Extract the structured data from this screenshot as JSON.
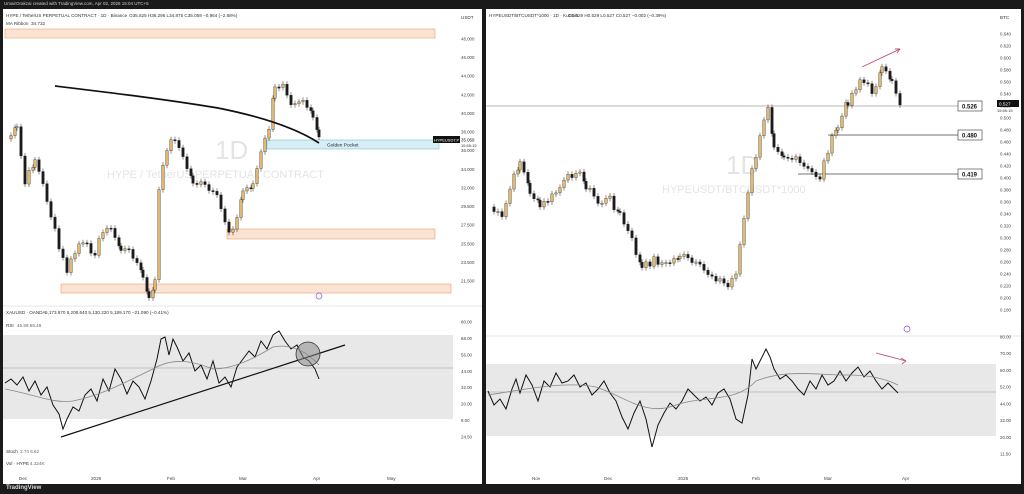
{
  "header_text": "UmairOrakzai created with TradingView.com, Apr 02, 2026 15:04 UTC+5",
  "footer_logo": "TradingView",
  "chart_data": [
    {
      "type": "candlestick",
      "title": "HYPE / TetherUS PERPETUAL CONTRACT · 1D · Binance",
      "ohlc_text": "O35.625 H36.295 L34.875 C35.059 −0.964 (−2.68%)",
      "ma_label": "MA Ribbon",
      "ma_value": "34.732",
      "watermark_interval": "1D",
      "watermark_symbol": "HYPE / TetherUS PERPETUAL CONTRACT",
      "currency": "USDT",
      "y_ticks": [
        "48.000",
        "46.000",
        "44.000",
        "42.000",
        "40.000",
        "38.000",
        "36.000",
        "34.000",
        "32.000",
        "29.500",
        "27.500",
        "25.500",
        "23.500",
        "21.500"
      ],
      "price_tag": {
        "symbol": "HYPEUSDT.P",
        "value": "35.059",
        "countdown": "15:55:15"
      },
      "zones": [
        {
          "label": "",
          "range": [
            47.8,
            48.6
          ]
        },
        {
          "label": "Golden Pocket",
          "range": [
            34.3,
            35.2
          ]
        },
        {
          "label": "",
          "range": [
            25.0,
            25.9
          ]
        },
        {
          "label": "",
          "range": [
            21.2,
            21.9
          ]
        }
      ],
      "indicator_label": "XAUUSD · OANDA",
      "indicator_values": "5,173.970  5,208.640  5,130.220  5,189.170  −21.090 (−0.41%)",
      "rsi_label": "RSI",
      "rsi_values": "45.89  55.49",
      "rsi_ticks": [
        "80.00",
        "68.00",
        "56.00",
        "44.00",
        "32.00",
        "20.00",
        "24.50"
      ],
      "rsi_ticks_display": [
        "80.00",
        "68.00",
        "56.00",
        "44.00",
        "32.00",
        "20.00",
        "8.00",
        "24.50"
      ],
      "stoch_label": "Stoch",
      "stoch_values": "2.74  6.62",
      "vol_label": "Vol · HYPE",
      "vol_value": "4.324K",
      "x_labels": [
        "Dec",
        "2026",
        "Feb",
        "Mar",
        "Apr",
        "May"
      ]
    },
    {
      "type": "candlestick",
      "title": "HYPEUSDT/BTCUSDT*1000 · 1D · KuCoin",
      "ohlc_text": "O0.529 H0.529 L0.527 C0.527 −0.002 (−0.39%)",
      "watermark_interval": "1D",
      "watermark_symbol": "HYPEUSDT/BTCUSDT*1000",
      "currency": "BTC",
      "y_ticks": [
        "0.640",
        "0.620",
        "0.600",
        "0.580",
        "0.560",
        "0.540",
        "0.520",
        "0.500",
        "0.480",
        "0.460",
        "0.440",
        "0.420",
        "0.400",
        "0.380",
        "0.360",
        "0.340",
        "0.320",
        "0.300",
        "0.280",
        "0.260",
        "0.240",
        "0.220",
        "0.200",
        "0.180"
      ],
      "levels": [
        {
          "label": "0.526",
          "value": 0.526
        },
        {
          "label": "0.480",
          "value": 0.48
        },
        {
          "label": "0.419",
          "value": 0.419
        }
      ],
      "price_tag": {
        "value": "0.527",
        "countdown": "15:55:15"
      },
      "rsi_ticks": [
        "80.00",
        "70.00",
        "60.00",
        "52.00",
        "44.00",
        "32.00",
        "20.00",
        "11.50"
      ],
      "x_labels": [
        "Nov",
        "Dec",
        "2026",
        "Feb",
        "Mar",
        "Apr"
      ]
    }
  ]
}
